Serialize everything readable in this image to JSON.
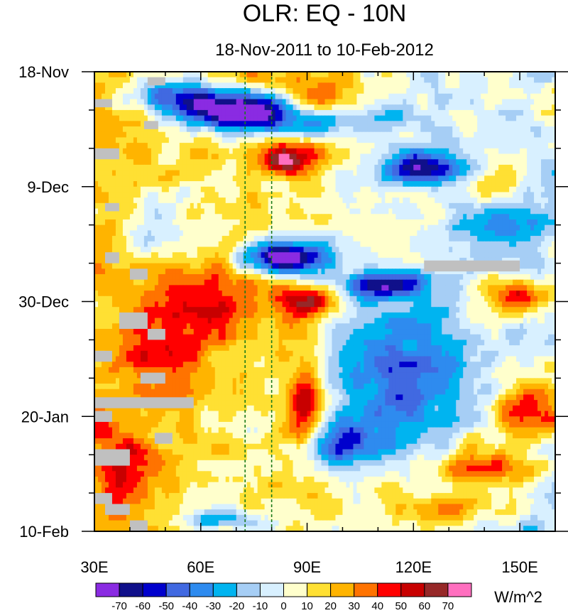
{
  "chart_data": {
    "type": "heatmap",
    "title": "OLR: EQ - 10N",
    "subtitle": "18-Nov-2011 to 10-Feb-2012",
    "units": "W/m^2",
    "x_axis": {
      "range": [
        30,
        160
      ],
      "ticks": [
        30,
        60,
        90,
        120,
        150
      ],
      "tick_labels": [
        "30E",
        "60E",
        "90E",
        "120E",
        "150E"
      ],
      "minor_step": 10
    },
    "y_axis": {
      "range_days": [
        0,
        84
      ],
      "ticks_days": [
        0,
        21,
        42,
        63,
        84
      ],
      "tick_labels": [
        "18-Nov",
        "9-Dec",
        "30-Dec",
        "20-Jan",
        "10-Feb"
      ],
      "minor_step_days": 7,
      "reversed": true
    },
    "reference_lines_lon": [
      72.5,
      80
    ],
    "colorbar": {
      "levels": [
        -70,
        -60,
        -50,
        -40,
        -30,
        -20,
        -10,
        0,
        10,
        20,
        30,
        40,
        50,
        60,
        70
      ],
      "labels": [
        "-70",
        "-60",
        "-50",
        "-40",
        "-30",
        "-20",
        "-10",
        "0",
        "10",
        "20",
        "30",
        "40",
        "50",
        "60",
        "70"
      ],
      "colors": [
        "#8a2be2",
        "#10108a",
        "#0000cd",
        "#4169e1",
        "#2e8bef",
        "#00b4f0",
        "#a6cef5",
        "#d8f0ff",
        "#ffffcc",
        "#ffe033",
        "#ffb400",
        "#ff7300",
        "#ff0000",
        "#c80000",
        "#962828",
        "#ff6fbf"
      ]
    },
    "features": [
      {
        "type": "blob",
        "lon": 72,
        "day": 7,
        "rlon": 16,
        "rday": 3.5,
        "amp": -105
      },
      {
        "type": "blob",
        "lon": 52,
        "day": 4.5,
        "rlon": 10,
        "rday": 3,
        "amp": -60
      },
      {
        "type": "blob",
        "lon": 90,
        "day": 5,
        "rlon": 12,
        "rday": 4,
        "amp": 40
      },
      {
        "type": "blob",
        "lon": 84,
        "day": 16,
        "rlon": 9,
        "rday": 3,
        "amp": 65
      },
      {
        "type": "blob",
        "lon": 122,
        "day": 17.5,
        "rlon": 12,
        "rday": 3,
        "amp": -70
      },
      {
        "type": "blob",
        "lon": 98,
        "day": 9,
        "rlon": 18,
        "rday": 2.5,
        "amp": -35
      },
      {
        "type": "blob",
        "lon": 84,
        "day": 34,
        "rlon": 12,
        "rday": 3,
        "amp": -95
      },
      {
        "type": "blob",
        "lon": 112,
        "day": 39,
        "rlon": 12,
        "rday": 2.5,
        "amp": -70
      },
      {
        "type": "blob",
        "lon": 90,
        "day": 42,
        "rlon": 8,
        "rday": 3,
        "amp": 55
      },
      {
        "type": "blob",
        "lon": 62,
        "day": 43,
        "rlon": 20,
        "rday": 9,
        "amp": 30
      },
      {
        "type": "blob",
        "lon": 48,
        "day": 54,
        "rlon": 12,
        "rday": 8,
        "amp": 25
      },
      {
        "type": "blob",
        "lon": 150,
        "day": 41,
        "rlon": 10,
        "rday": 3,
        "amp": 55
      },
      {
        "type": "blob",
        "lon": 115,
        "day": 55,
        "rlon": 18,
        "rday": 12,
        "amp": -50
      },
      {
        "type": "blob",
        "lon": 100,
        "day": 68,
        "rlon": 12,
        "rday": 4,
        "amp": -55
      },
      {
        "type": "blob",
        "lon": 89,
        "day": 62,
        "rlon": 5,
        "rday": 10,
        "amp": 55
      },
      {
        "type": "blob",
        "lon": 155,
        "day": 62,
        "rlon": 10,
        "rday": 6,
        "amp": 60
      },
      {
        "type": "blob",
        "lon": 140,
        "day": 72,
        "rlon": 16,
        "rday": 3,
        "amp": 40
      },
      {
        "type": "blob",
        "lon": 130,
        "day": 80,
        "rlon": 18,
        "rday": 3,
        "amp": 30
      },
      {
        "type": "blob",
        "lon": 48,
        "day": 28,
        "rlon": 12,
        "rday": 6,
        "amp": -25
      },
      {
        "type": "blob",
        "lon": 65,
        "day": 82,
        "rlon": 10,
        "rday": 2,
        "amp": -45
      },
      {
        "type": "blob",
        "lon": 38,
        "day": 72,
        "rlon": 8,
        "rday": 8,
        "amp": 35
      },
      {
        "type": "blob",
        "lon": 145,
        "day": 20,
        "rlon": 10,
        "rday": 6,
        "amp": 20
      },
      {
        "type": "blob",
        "lon": 145,
        "day": 28,
        "rlon": 12,
        "rday": 4,
        "amp": -35
      }
    ],
    "missing_regions": [
      {
        "lon": [
          30,
          58
        ],
        "day": [
          59.5,
          61.5
        ]
      },
      {
        "lon": [
          123,
          150
        ],
        "day": [
          34.5,
          36.5
        ]
      },
      {
        "lon": [
          45,
          50
        ],
        "day": [
          1,
          2.5
        ]
      },
      {
        "lon": [
          30,
          35
        ],
        "day": [
          5,
          6.5
        ]
      },
      {
        "lon": [
          44,
          48
        ],
        "day": [
          9,
          10.5
        ]
      },
      {
        "lon": [
          30,
          37
        ],
        "day": [
          14,
          16
        ]
      },
      {
        "lon": [
          33,
          37
        ],
        "day": [
          24,
          25.5
        ]
      },
      {
        "lon": [
          33,
          37
        ],
        "day": [
          33,
          35
        ]
      },
      {
        "lon": [
          40,
          45
        ],
        "day": [
          36,
          38
        ]
      },
      {
        "lon": [
          37,
          45
        ],
        "day": [
          44,
          47
        ]
      },
      {
        "lon": [
          45,
          50
        ],
        "day": [
          47,
          49
        ]
      },
      {
        "lon": [
          30,
          35
        ],
        "day": [
          51,
          53
        ]
      },
      {
        "lon": [
          43,
          50
        ],
        "day": [
          55,
          57
        ]
      },
      {
        "lon": [
          30,
          35
        ],
        "day": [
          62,
          64
        ]
      },
      {
        "lon": [
          47,
          52
        ],
        "day": [
          66,
          68
        ]
      },
      {
        "lon": [
          30,
          40
        ],
        "day": [
          69,
          72
        ]
      },
      {
        "lon": [
          30,
          35
        ],
        "day": [
          77,
          79
        ]
      },
      {
        "lon": [
          33,
          40
        ],
        "day": [
          79,
          81
        ]
      },
      {
        "lon": [
          40,
          45
        ],
        "day": [
          82,
          84
        ]
      }
    ],
    "background": {
      "base": 12,
      "lon_gradient": -0.22,
      "noise": 22
    }
  }
}
